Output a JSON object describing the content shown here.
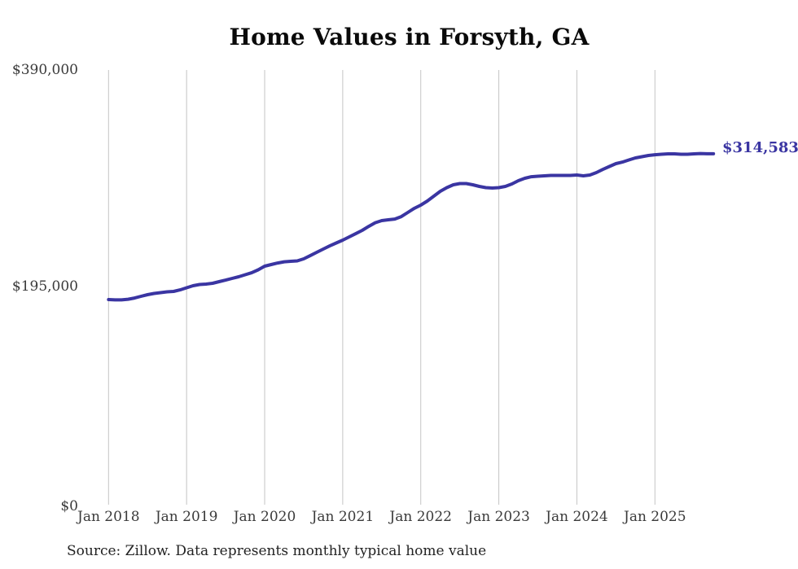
{
  "title": "Home Values in Forsyth, GA",
  "source_note": "Source: Zillow. Data represents monthly typical home value",
  "colors": {
    "line": "#3a35a2",
    "grid": "#c4c4c4",
    "axis_text": "#3a3a3a",
    "title_text": "#0a0a0a",
    "end_label": "#3a35a2"
  },
  "y_axis": {
    "tick_labels": [
      "$390,000",
      "$195,000",
      "$0"
    ]
  },
  "x_axis": {
    "tick_labels": [
      "Jan 2018",
      "Jan 2019",
      "Jan 2020",
      "Jan 2021",
      "Jan 2022",
      "Jan 2023",
      "Jan 2024",
      "Jan 2025"
    ]
  },
  "line": {
    "end_label": "$314,583"
  },
  "chart_data": {
    "type": "line",
    "title": "Home Values in Forsyth, GA",
    "series_name": "Monthly typical home value",
    "xlabel": "",
    "ylabel": "",
    "ylim": [
      0,
      390000
    ],
    "y_tick_labels": [
      "$0",
      "$195,000",
      "$390,000"
    ],
    "x_tick_labels": [
      "Jan 2018",
      "Jan 2019",
      "Jan 2020",
      "Jan 2021",
      "Jan 2022",
      "Jan 2023",
      "Jan 2024",
      "Jan 2025"
    ],
    "grid": "vertical-only",
    "legend": "none",
    "end_value": 314583,
    "end_value_label": "$314,583",
    "months": [
      "2018-01",
      "2018-02",
      "2018-03",
      "2018-04",
      "2018-05",
      "2018-06",
      "2018-07",
      "2018-08",
      "2018-09",
      "2018-10",
      "2018-11",
      "2018-12",
      "2019-01",
      "2019-02",
      "2019-03",
      "2019-04",
      "2019-05",
      "2019-06",
      "2019-07",
      "2019-08",
      "2019-09",
      "2019-10",
      "2019-11",
      "2019-12",
      "2020-01",
      "2020-02",
      "2020-03",
      "2020-04",
      "2020-05",
      "2020-06",
      "2020-07",
      "2020-08",
      "2020-09",
      "2020-10",
      "2020-11",
      "2020-12",
      "2021-01",
      "2021-02",
      "2021-03",
      "2021-04",
      "2021-05",
      "2021-06",
      "2021-07",
      "2021-08",
      "2021-09",
      "2021-10",
      "2021-11",
      "2021-12",
      "2022-01",
      "2022-02",
      "2022-03",
      "2022-04",
      "2022-05",
      "2022-06",
      "2022-07",
      "2022-08",
      "2022-09",
      "2022-10",
      "2022-11",
      "2022-12",
      "2023-01",
      "2023-02",
      "2023-03",
      "2023-04",
      "2023-05",
      "2023-06",
      "2023-07",
      "2023-08",
      "2023-09",
      "2023-10",
      "2023-11",
      "2023-12",
      "2024-01",
      "2024-02",
      "2024-03",
      "2024-04",
      "2024-05",
      "2024-06",
      "2024-07",
      "2024-08",
      "2024-09",
      "2024-10",
      "2024-11",
      "2024-12",
      "2025-01",
      "2025-02",
      "2025-03",
      "2025-04",
      "2025-05",
      "2025-06",
      "2025-07",
      "2025-08",
      "2025-09",
      "2025-10"
    ],
    "values": [
      183300,
      183000,
      183000,
      183600,
      184700,
      186200,
      187700,
      188800,
      189500,
      190200,
      190600,
      192000,
      193900,
      195700,
      196800,
      197200,
      197900,
      199400,
      200800,
      202300,
      203800,
      205600,
      207400,
      210000,
      213300,
      214800,
      216200,
      217300,
      217700,
      218100,
      219900,
      222800,
      225800,
      228700,
      231600,
      234200,
      236800,
      239700,
      242600,
      245600,
      249200,
      252500,
      254400,
      255100,
      255800,
      258000,
      261700,
      265400,
      268300,
      272000,
      276400,
      280800,
      284100,
      286600,
      287700,
      287700,
      286600,
      285200,
      284100,
      283700,
      284100,
      285200,
      287400,
      290300,
      292500,
      293900,
      294300,
      294700,
      295100,
      295100,
      295100,
      295100,
      295400,
      294700,
      295400,
      297600,
      300500,
      303100,
      305700,
      307100,
      309000,
      310800,
      311900,
      313000,
      313700,
      314100,
      314500,
      314500,
      314100,
      314100,
      314500,
      314800,
      314600,
      314583
    ]
  }
}
